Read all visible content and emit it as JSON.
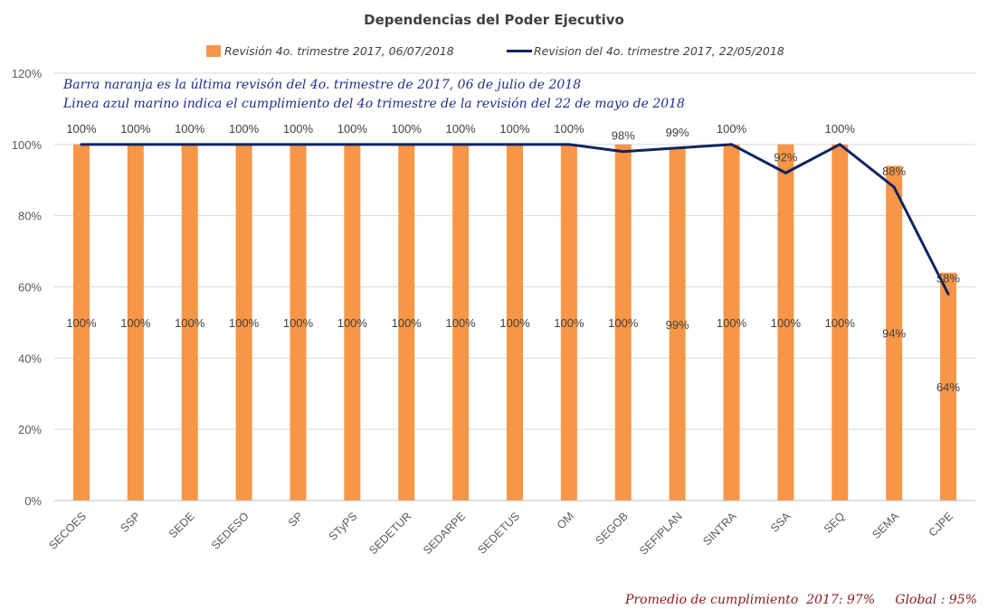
{
  "chart_data": {
    "type": "bar",
    "title": "Dependencias del Poder Ejecutivo",
    "categories": [
      "SECOES",
      "SSP",
      "SEDE",
      "SEDESO",
      "SP",
      "STyPS",
      "SEDETUR",
      "SEDARPE",
      "SEDETUS",
      "OM",
      "SEGOB",
      "SEFIPLAN",
      "SINTRA",
      "SSA",
      "SEQ",
      "SEMA",
      "CJPE"
    ],
    "series": [
      {
        "name": "Revisión 4o. trimestre 2017, 06/07/2018",
        "kind": "bar",
        "color": "#f79646",
        "values": [
          100,
          100,
          100,
          100,
          100,
          100,
          100,
          100,
          100,
          100,
          100,
          99,
          100,
          100,
          100,
          94,
          64
        ],
        "labels": [
          "100%",
          "100%",
          "100%",
          "100%",
          "100%",
          "100%",
          "100%",
          "100%",
          "100%",
          "100%",
          "100%",
          "99%",
          "100%",
          "100%",
          "100%",
          "94%",
          "64%"
        ]
      },
      {
        "name": "Revision del 4o. trimestre 2017, 22/05/2018",
        "kind": "line",
        "color": "#0f2460",
        "values": [
          100,
          100,
          100,
          100,
          100,
          100,
          100,
          100,
          100,
          100,
          98,
          99,
          100,
          92,
          100,
          88,
          58
        ],
        "labels": [
          "100%",
          "100%",
          "100%",
          "100%",
          "100%",
          "100%",
          "100%",
          "100%",
          "100%",
          "100%",
          "98%",
          "99%",
          "100%",
          "92%",
          "100%",
          "88%",
          "58%"
        ]
      }
    ],
    "ylim": [
      0,
      120
    ],
    "yticks": [
      "0%",
      "20%",
      "40%",
      "60%",
      "80%",
      "100%",
      "120%"
    ],
    "grid": true,
    "legend_position": "top"
  },
  "annotations": {
    "line1": "Barra naranja es la última revisón del 4o. trimestre de 2017, 06 de julio de 2018",
    "line2": "Linea azul marino indica el cumplimiento  del 4o trimestre  de la revisión del 22 de mayo de 2018"
  },
  "footer": {
    "text": "Promedio de cumplimiento  2017: 97%     Global : 95%"
  }
}
